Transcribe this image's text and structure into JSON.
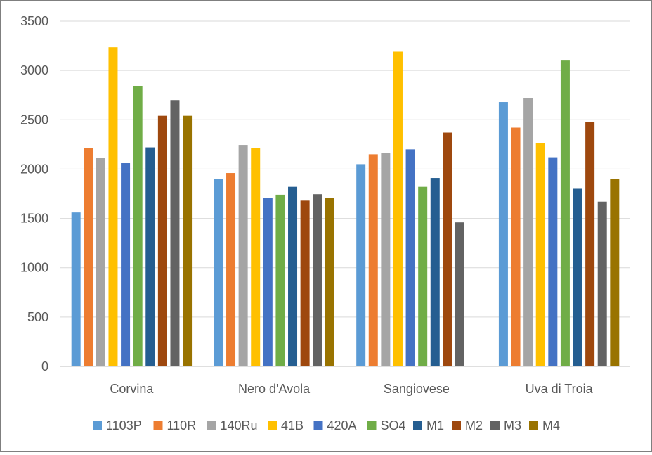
{
  "chart_data": {
    "type": "bar",
    "title": "",
    "xlabel": "",
    "ylabel": "",
    "ylim": [
      0,
      3500
    ],
    "yticks": [
      0,
      500,
      1000,
      1500,
      2000,
      2500,
      3000,
      3500
    ],
    "grid": true,
    "legend_position": "bottom",
    "categories": [
      "Corvina",
      "Nero d'Avola",
      "Sangiovese",
      "Uva di Troia"
    ],
    "series": [
      {
        "name": "1103P",
        "color": "#5b9bd5",
        "values": [
          1560,
          1900,
          2050,
          2680
        ]
      },
      {
        "name": "110R",
        "color": "#ed7d31",
        "values": [
          2210,
          1960,
          2150,
          2420
        ]
      },
      {
        "name": "140Ru",
        "color": "#a5a5a5",
        "values": [
          2110,
          2245,
          2165,
          2720
        ]
      },
      {
        "name": "41B",
        "color": "#ffc000",
        "values": [
          3235,
          2210,
          3190,
          2260
        ]
      },
      {
        "name": "420A",
        "color": "#4472c4",
        "values": [
          2060,
          1710,
          2200,
          2120
        ]
      },
      {
        "name": "SO4",
        "color": "#70ad47",
        "values": [
          2840,
          1740,
          1820,
          3100
        ]
      },
      {
        "name": "M1",
        "color": "#255e91",
        "values": [
          2220,
          1820,
          1910,
          1800
        ]
      },
      {
        "name": "M2",
        "color": "#9e480e",
        "values": [
          2540,
          1680,
          2370,
          2480
        ]
      },
      {
        "name": "M3",
        "color": "#636363",
        "values": [
          2700,
          1745,
          1460,
          1670
        ]
      },
      {
        "name": "M4",
        "color": "#997300",
        "values": [
          2540,
          1705,
          null,
          1900
        ]
      }
    ]
  }
}
